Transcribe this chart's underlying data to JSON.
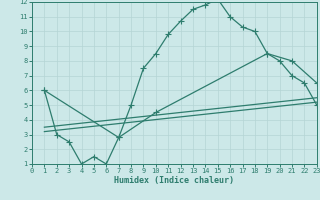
{
  "xlabel": "Humidex (Indice chaleur)",
  "xlim": [
    0,
    23
  ],
  "ylim": [
    1,
    12
  ],
  "xticks": [
    0,
    1,
    2,
    3,
    4,
    5,
    6,
    7,
    8,
    9,
    10,
    11,
    12,
    13,
    14,
    15,
    16,
    17,
    18,
    19,
    20,
    21,
    22,
    23
  ],
  "yticks": [
    1,
    2,
    3,
    4,
    5,
    6,
    7,
    8,
    9,
    10,
    11,
    12
  ],
  "line_color": "#2e7d6e",
  "bg_color": "#cce8e8",
  "grid_color": "#b5d5d5",
  "line1_x": [
    1,
    2,
    3,
    4,
    5,
    6,
    7,
    8,
    9,
    10,
    11,
    12,
    13,
    14,
    15,
    16,
    17,
    18,
    19,
    20,
    21,
    22,
    23
  ],
  "line1_y": [
    6,
    3,
    2.5,
    1,
    1.5,
    1,
    2.8,
    5,
    7.5,
    8.5,
    9.8,
    10.7,
    11.5,
    11.8,
    12.2,
    11,
    10.3,
    10,
    8.5,
    8,
    7,
    6.5,
    5
  ],
  "line2_x": [
    1,
    7,
    10,
    19,
    21,
    23
  ],
  "line2_y": [
    6,
    2.8,
    4.5,
    8.5,
    8.0,
    6.5
  ],
  "line3_x": [
    1,
    23
  ],
  "line3_y": [
    3.2,
    5.2
  ],
  "line4_x": [
    1,
    23
  ],
  "line4_y": [
    3.5,
    5.5
  ],
  "markersize": 2.5,
  "linewidth": 0.9
}
